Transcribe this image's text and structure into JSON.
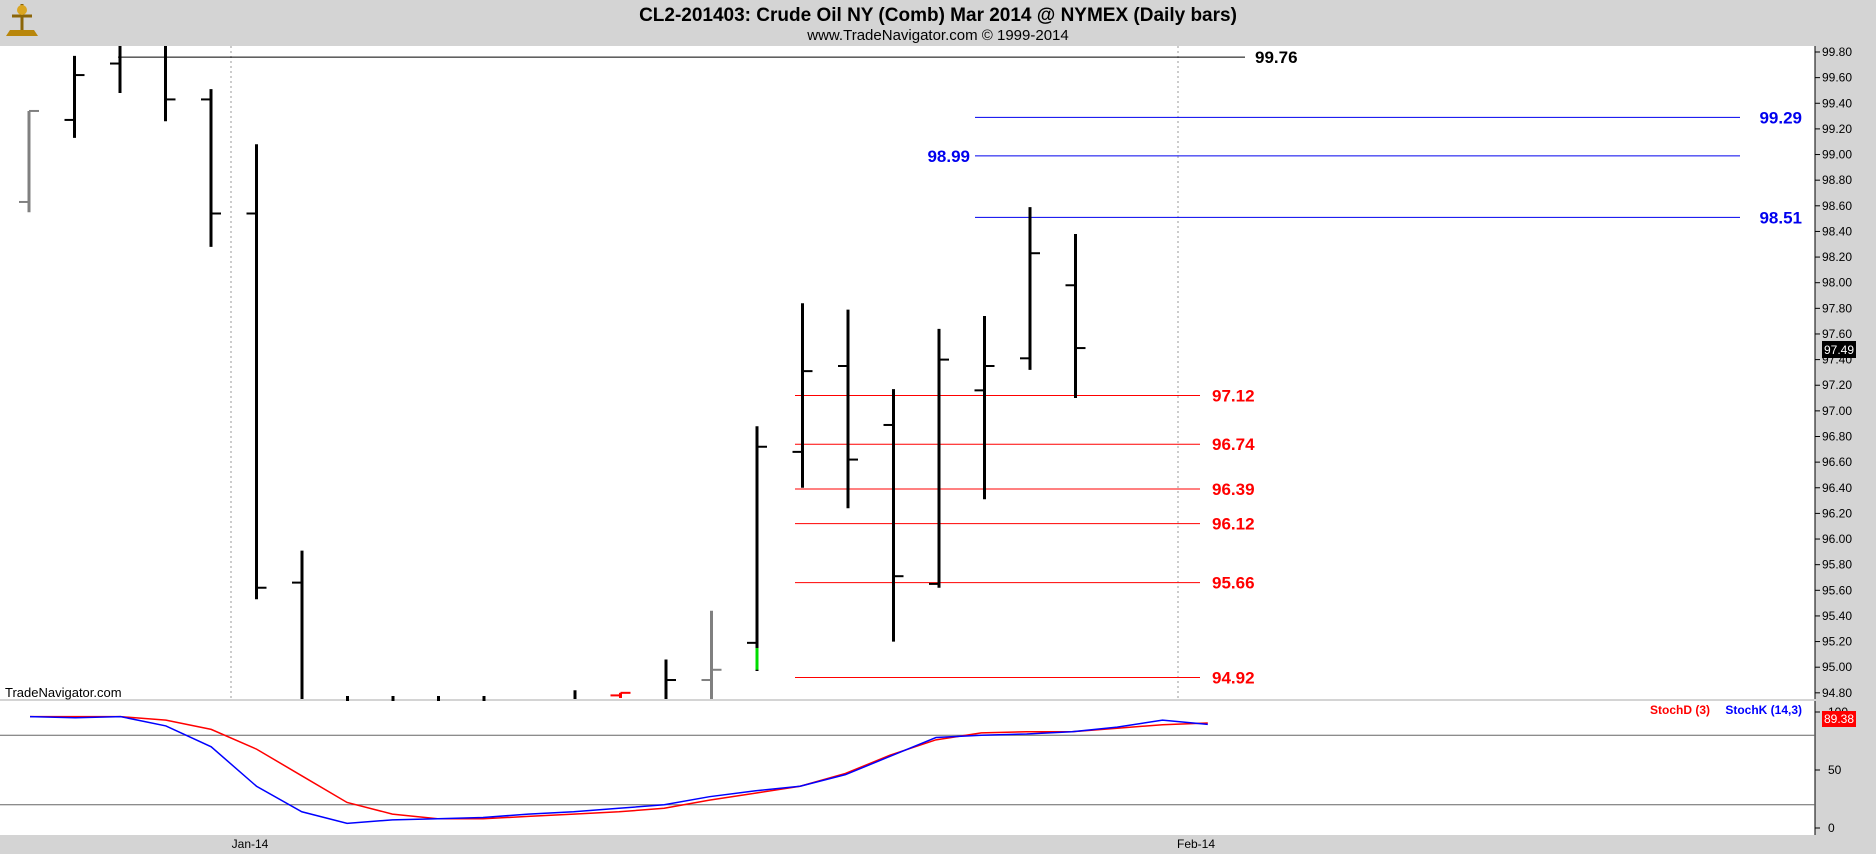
{
  "header": {
    "title": "CL2-201403:  Crude Oil NY (Comb) Mar 2014 @ NYMEX  (Daily bars)",
    "subtitle": "www.TradeNavigator.com © 1999-2014",
    "watermark": "TradeNavigator.com",
    "logo_icon": "trade-navigator-logo-icon"
  },
  "colors": {
    "bar": "#000000",
    "bar_gray": "#808080",
    "bar_green": "#00dd00",
    "bar_red": "#ff0000",
    "blue": "#0000ee",
    "red": "#ff0000",
    "stoch_k": "#0000ff",
    "stoch_d": "#ff0000"
  },
  "chart_data": [
    {
      "type": "ohlc",
      "name": "price",
      "x_dates": [
        "Jan-14",
        "Feb-14"
      ],
      "ylim": [
        94.75,
        99.85
      ],
      "yticks": [
        "99.80",
        "99.60",
        "99.40",
        "99.20",
        "99.00",
        "98.80",
        "98.60",
        "98.40",
        "98.20",
        "98.00",
        "97.80",
        "97.60",
        "97.40",
        "97.20",
        "97.00",
        "96.80",
        "96.60",
        "96.40",
        "96.20",
        "96.00",
        "95.80",
        "95.60",
        "95.40",
        "95.20",
        "95.00",
        "94.80"
      ],
      "last_price": "97.49",
      "bars": [
        {
          "o": 98.63,
          "h": 99.34,
          "l": 98.55,
          "c": 99.34,
          "color": "gray"
        },
        {
          "o": 99.27,
          "h": 99.77,
          "l": 99.13,
          "c": 99.62,
          "color": "black"
        },
        {
          "o": 99.71,
          "h": 99.95,
          "l": 99.48,
          "c": 99.95,
          "color": "black"
        },
        {
          "o": 99.95,
          "h": 99.95,
          "l": 99.26,
          "c": 99.43,
          "color": "black"
        },
        {
          "o": 99.43,
          "h": 99.51,
          "l": 98.28,
          "c": 98.54,
          "color": "black"
        },
        {
          "o": 98.54,
          "h": 99.08,
          "l": 95.53,
          "c": 95.62,
          "color": "black"
        },
        {
          "o": 95.66,
          "h": 95.91,
          "l": 94.0,
          "c": 94.0,
          "color": "black"
        },
        {
          "o": 94.0,
          "h": 94.5,
          "l": 94.0,
          "c": 94.2,
          "color": "black"
        },
        {
          "o": 94.0,
          "h": 94.4,
          "l": 94.0,
          "c": 94.0,
          "color": "black"
        },
        {
          "o": 94.0,
          "h": 94.3,
          "l": 94.0,
          "c": 94.0,
          "color": "black"
        },
        {
          "o": 94.0,
          "h": 94.4,
          "l": 94.0,
          "c": 94.1,
          "color": "black"
        },
        {
          "o": 94.0,
          "h": 94.82,
          "l": 94.0,
          "c": 94.0,
          "color": "black"
        },
        {
          "o": 94.78,
          "h": 94.8,
          "l": 94.76,
          "c": 94.8,
          "color": "red"
        },
        {
          "o": 94.5,
          "h": 95.06,
          "l": 94.4,
          "c": 94.9,
          "color": "black"
        },
        {
          "o": 94.9,
          "h": 95.44,
          "l": 94.75,
          "c": 94.98,
          "color": "gray"
        },
        {
          "o": 95.19,
          "h": 96.88,
          "l": 94.97,
          "c": 96.72,
          "color": "black"
        },
        {
          "o": 96.68,
          "h": 97.84,
          "l": 96.4,
          "c": 97.31,
          "color": "black"
        },
        {
          "o": 97.35,
          "h": 97.79,
          "l": 96.24,
          "c": 96.62,
          "color": "black"
        },
        {
          "o": 96.89,
          "h": 97.17,
          "l": 95.2,
          "c": 95.71,
          "color": "black"
        },
        {
          "o": 95.65,
          "h": 97.64,
          "l": 95.62,
          "c": 97.4,
          "color": "black"
        },
        {
          "o": 97.16,
          "h": 97.74,
          "l": 96.31,
          "c": 97.35,
          "color": "black"
        },
        {
          "o": 97.41,
          "h": 98.59,
          "l": 97.32,
          "c": 98.23,
          "color": "black"
        },
        {
          "o": 97.98,
          "h": 98.38,
          "l": 97.1,
          "c": 97.49,
          "color": "black"
        }
      ],
      "levels": [
        {
          "label": "99.76",
          "value": 99.76,
          "color": "black",
          "side": "right"
        },
        {
          "label": "99.29",
          "value": 99.29,
          "color": "blue",
          "side": "right"
        },
        {
          "label": "98.99",
          "value": 98.99,
          "color": "blue",
          "side": "left"
        },
        {
          "label": "98.51",
          "value": 98.51,
          "color": "blue",
          "side": "right"
        },
        {
          "label": "97.12",
          "value": 97.12,
          "color": "red",
          "side": "right"
        },
        {
          "label": "96.74",
          "value": 96.74,
          "color": "red",
          "side": "right"
        },
        {
          "label": "96.39",
          "value": 96.39,
          "color": "red",
          "side": "right"
        },
        {
          "label": "96.12",
          "value": 96.12,
          "color": "red",
          "side": "right"
        },
        {
          "label": "95.66",
          "value": 95.66,
          "color": "red",
          "side": "right"
        },
        {
          "label": "94.92",
          "value": 94.92,
          "color": "red",
          "side": "right"
        }
      ]
    },
    {
      "type": "line",
      "name": "stochastic",
      "ylim": [
        0,
        100
      ],
      "yticks": [
        "100",
        "50",
        "0"
      ],
      "reference_lines": [
        80,
        20
      ],
      "last_value": "89.38",
      "series": [
        {
          "name": "StochD (3)",
          "color": "red",
          "values": [
            96,
            96,
            96,
            93,
            85,
            68,
            45,
            22,
            12,
            8,
            8,
            10,
            12,
            14,
            17,
            24,
            30,
            36,
            47,
            63,
            76,
            82,
            83,
            83,
            86,
            89,
            90.5
          ]
        },
        {
          "name": "StochK (14,3)",
          "color": "blue",
          "values": [
            96,
            95,
            96,
            88,
            70,
            36,
            14,
            4,
            7,
            8,
            9,
            12,
            14,
            17,
            20,
            27,
            32,
            36,
            46,
            62,
            78,
            80,
            81,
            83,
            87,
            93,
            89.38
          ]
        }
      ]
    }
  ]
}
